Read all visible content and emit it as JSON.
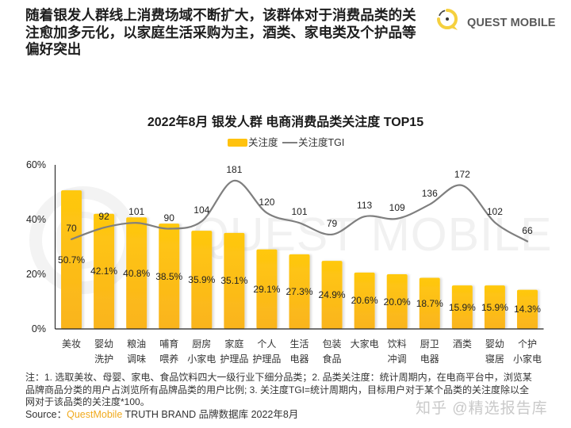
{
  "headline": {
    "lines": [
      "随着银发人群线上消费场域不断扩大，该群体对于消费品类的关",
      "注愈加多元化，以家庭生活采购为主，酒类、家电类及个护品等",
      "偏好突出"
    ]
  },
  "logo": {
    "icon": "quest-mobile-logo-icon",
    "text": "QUEST MOBILE",
    "ring_color": "#F5D03E"
  },
  "background_watermark": "QUEST MOBILE",
  "chart_data": {
    "type": "bar+line",
    "title": "2022年8月 银发人群 电商消费品类关注度 TOP15",
    "categories": [
      "美妆",
      "婴幼\n洗护",
      "粮油\n调味",
      "哺育\n喂养",
      "厨房\n小家电",
      "家庭\n护理品",
      "个人\n护理品",
      "生活\n电器",
      "包装\n食品",
      "大家电",
      "饮料\n冲调",
      "厨卫\n电器",
      "酒类",
      "婴幼\n寝居",
      "个护\n小家电"
    ],
    "series": [
      {
        "name": "关注度",
        "type": "bar",
        "axis": "primary",
        "values": [
          50.7,
          42.1,
          40.8,
          38.5,
          35.9,
          35.1,
          29.1,
          27.3,
          24.9,
          20.6,
          20.0,
          18.7,
          15.9,
          15.9,
          14.3
        ],
        "labels": [
          "50.7%",
          "42.1%",
          "40.8%",
          "38.5%",
          "35.9%",
          "35.1%",
          "29.1%",
          "27.3%",
          "24.9%",
          "20.6%",
          "20.0%",
          "18.7%",
          "15.9%",
          "15.9%",
          "14.3%"
        ],
        "color": "#FFC20E",
        "gradient": [
          "#FFC80F",
          "#FAB41E"
        ]
      },
      {
        "name": "关注度TGI",
        "type": "line",
        "axis": "secondary",
        "smooth": true,
        "values": [
          70,
          92,
          101,
          90,
          104,
          181,
          120,
          101,
          79,
          113,
          109,
          136,
          172,
          102,
          66
        ],
        "color": "#7F7F7F"
      }
    ],
    "xlabel": "",
    "ylabel": "",
    "ylim": [
      0,
      60
    ],
    "yticks": [
      {
        "value": 60,
        "label": "60%"
      },
      {
        "value": 40,
        "label": "40%"
      },
      {
        "value": 20,
        "label": "20%"
      },
      {
        "value": 0,
        "label": "0%"
      }
    ],
    "y2lim": [
      -100,
      211
    ],
    "y2_axis_visible": false,
    "legend": {
      "position": "top-center"
    },
    "grid": false
  },
  "notes": {
    "lines": [
      "注：1. 选取美妆、母婴、家电、食品饮料四大一级行业下细分品类；2. 品类关注度：统计周期内，在电商平台中，浏览某",
      "品牌商品分类的用户占浏览所有品牌品类的用户比例; 3. 关注度TGI=统计周期内，目标用户对于某个品类的关注度除以全",
      "网对于该品类的关注度*100。"
    ]
  },
  "source": {
    "label": "Source：",
    "brand": "QuestMobile",
    "rest": " TRUTH BRAND 品牌数据库 2022年8月",
    "brand_color": "#F0AA1E"
  },
  "overlay_watermark": "知乎 @精选报告库"
}
